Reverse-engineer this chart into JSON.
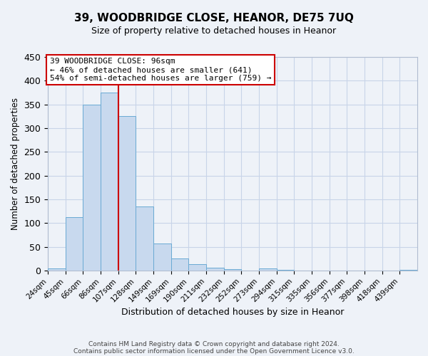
{
  "title": "39, WOODBRIDGE CLOSE, HEANOR, DE75 7UQ",
  "subtitle": "Size of property relative to detached houses in Heanor",
  "xlabel": "Distribution of detached houses by size in Heanor",
  "ylabel": "Number of detached properties",
  "bar_labels": [
    "24sqm",
    "45sqm",
    "66sqm",
    "86sqm",
    "107sqm",
    "128sqm",
    "149sqm",
    "169sqm",
    "190sqm",
    "211sqm",
    "232sqm",
    "252sqm",
    "273sqm",
    "294sqm",
    "315sqm",
    "335sqm",
    "356sqm",
    "377sqm",
    "398sqm",
    "418sqm",
    "439sqm"
  ],
  "bar_values": [
    5,
    112,
    350,
    375,
    325,
    135,
    57,
    25,
    14,
    6,
    3,
    0,
    5,
    2,
    0,
    0,
    0,
    0,
    0,
    0,
    2
  ],
  "bar_color": "#c8d9ee",
  "bar_edge_color": "#6aaad4",
  "vline_color": "#cc0000",
  "ylim": [
    0,
    450
  ],
  "annotation_box_text": [
    "39 WOODBRIDGE CLOSE: 96sqm",
    "← 46% of detached houses are smaller (641)",
    "54% of semi-detached houses are larger (759) →"
  ],
  "footer_lines": [
    "Contains HM Land Registry data © Crown copyright and database right 2024.",
    "Contains public sector information licensed under the Open Government Licence v3.0."
  ],
  "grid_color": "#c8d4e8",
  "background_color": "#eef2f8"
}
